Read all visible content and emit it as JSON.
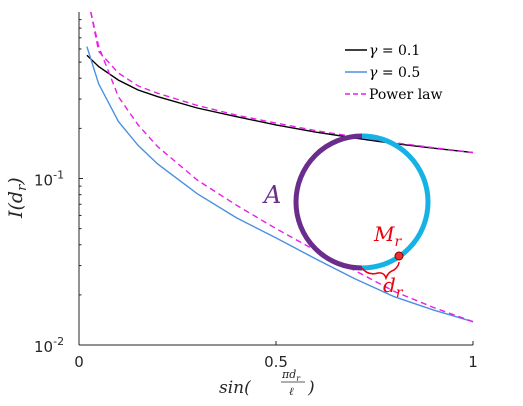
{
  "chart_data": {
    "type": "line",
    "x_scale": "linear",
    "y_scale": "log",
    "xlim": [
      0,
      1
    ],
    "ylim": [
      0.01,
      1
    ],
    "x_ticks": [
      {
        "value": 0,
        "label": "0"
      },
      {
        "value": 0.5,
        "label": "0.5"
      },
      {
        "value": 1,
        "label": "1"
      }
    ],
    "y_ticks": [
      {
        "value": 0.1,
        "mantissa": "10",
        "exponent": "-1"
      },
      {
        "value": 0.01,
        "mantissa": "10",
        "exponent": "-2"
      }
    ],
    "xlabel": {
      "main": "sin(",
      "num": "πd",
      "num_sub": "r",
      "den": "ℓ",
      "close": ")"
    },
    "ylabel": {
      "main": "I(d",
      "sub": "r",
      "close": ")"
    },
    "grid": false,
    "legend_position": "top-right",
    "series": [
      {
        "name": "γ = 0.1",
        "name_parts": [
          "γ",
          " = 0.1"
        ],
        "color": "#000000",
        "style": "solid",
        "x": [
          0.02,
          0.05,
          0.1,
          0.15,
          0.2,
          0.3,
          0.4,
          0.5,
          0.6,
          0.7,
          0.8,
          0.9,
          1.0
        ],
        "y": [
          0.55,
          0.47,
          0.39,
          0.34,
          0.31,
          0.265,
          0.235,
          0.21,
          0.19,
          0.175,
          0.162,
          0.152,
          0.143
        ]
      },
      {
        "name": "γ = 0.5",
        "name_parts": [
          "γ",
          " = 0.5"
        ],
        "color": "#4a90e2",
        "style": "solid",
        "x": [
          0.02,
          0.05,
          0.1,
          0.15,
          0.2,
          0.3,
          0.4,
          0.5,
          0.6,
          0.7,
          0.8,
          0.9,
          1.0
        ],
        "y": [
          0.62,
          0.37,
          0.22,
          0.158,
          0.122,
          0.081,
          0.058,
          0.044,
          0.033,
          0.025,
          0.0195,
          0.0162,
          0.0138
        ]
      },
      {
        "name": "Power law",
        "name_parts": [
          "Power law"
        ],
        "color": "#e81ee8",
        "style": "dashed",
        "x": [
          0.03,
          0.05,
          0.1,
          0.15,
          0.2,
          0.3,
          0.4,
          0.5,
          0.6,
          0.7,
          0.8,
          0.9,
          1.0
        ],
        "y": [
          1.0,
          0.62,
          0.31,
          0.21,
          0.155,
          0.098,
          0.069,
          0.05,
          0.037,
          0.028,
          0.021,
          0.0168,
          0.0138
        ],
        "y_upper": [
          1.0,
          0.58,
          0.43,
          0.36,
          0.325,
          0.275,
          0.24,
          0.215,
          0.194,
          0.178,
          0.164,
          0.153,
          0.143
        ]
      }
    ],
    "inset": {
      "A_label": "A",
      "M_main": "M",
      "M_sub": "r",
      "d_main": "d",
      "d_sub": "r",
      "purple_color": "#6b2d8c",
      "blue_color": "#15b2e6",
      "point_color": "#e8312a",
      "label_color": "#e8000d"
    }
  }
}
